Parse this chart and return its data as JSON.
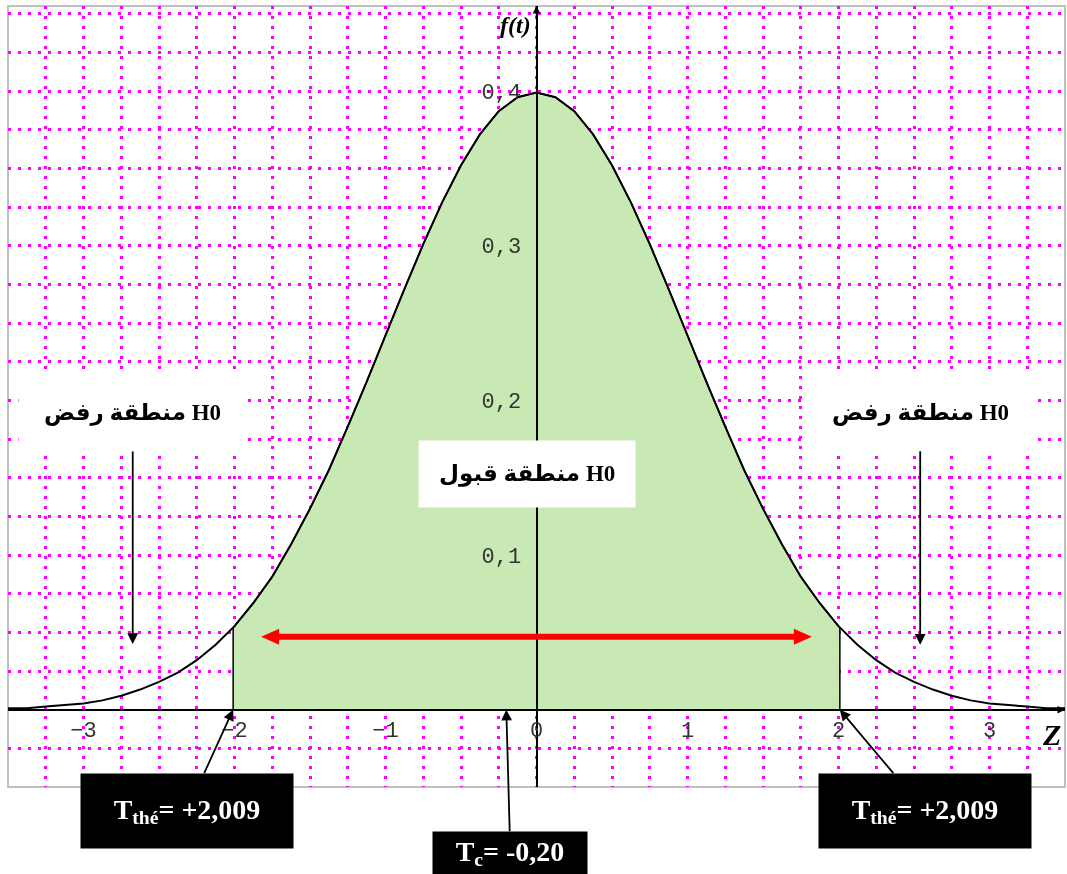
{
  "chart_data": {
    "type": "line",
    "xlabel": "Z",
    "ylabel": "f(t)",
    "xlim": [
      -3.5,
      3.5
    ],
    "ylim": [
      -0.05,
      0.455
    ],
    "xticks": [
      {
        "value": -3.25,
        "label": null
      },
      {
        "value": -3,
        "label": "−3"
      },
      {
        "value": -2.75,
        "label": null
      },
      {
        "value": -2.5,
        "label": null
      },
      {
        "value": -2.25,
        "label": null
      },
      {
        "value": -2,
        "label": "−2"
      },
      {
        "value": -1.75,
        "label": null
      },
      {
        "value": -1.5,
        "label": null
      },
      {
        "value": -1.25,
        "label": null
      },
      {
        "value": -1,
        "label": "−1"
      },
      {
        "value": -0.75,
        "label": null
      },
      {
        "value": -0.5,
        "label": null
      },
      {
        "value": -0.25,
        "label": null
      },
      0,
      {
        "value": 0.25,
        "label": null
      },
      {
        "value": 0.5,
        "label": null
      },
      {
        "value": 0.75,
        "label": null
      },
      1,
      {
        "value": 1.25,
        "label": null
      },
      {
        "value": 1.5,
        "label": null
      },
      {
        "value": 1.75,
        "label": null
      },
      2,
      {
        "value": 2.25,
        "label": null
      },
      {
        "value": 2.5,
        "label": null
      },
      {
        "value": 2.75,
        "label": null
      },
      3,
      {
        "value": 3.25,
        "label": null
      }
    ],
    "yticks": [
      {
        "value": -0.05,
        "label": null
      },
      {
        "value": -0.025,
        "label": null
      },
      {
        "value": 0.025,
        "label": null
      },
      {
        "value": 0.05,
        "label": null
      },
      {
        "value": 0.075,
        "label": null
      },
      {
        "value": 0.1,
        "label": "0,1"
      },
      {
        "value": 0.125,
        "label": null
      },
      {
        "value": 0.15,
        "label": null
      },
      {
        "value": 0.175,
        "label": null
      },
      {
        "value": 0.2,
        "label": "0,2"
      },
      {
        "value": 0.225,
        "label": null
      },
      {
        "value": 0.25,
        "label": null
      },
      {
        "value": 0.275,
        "label": null
      },
      {
        "value": 0.3,
        "label": "0,3"
      },
      {
        "value": 0.325,
        "label": null
      },
      {
        "value": 0.35,
        "label": null
      },
      {
        "value": 0.375,
        "label": null
      },
      {
        "value": 0.4,
        "label": "0,4"
      },
      {
        "value": 0.425,
        "label": null
      },
      {
        "value": 0.45,
        "label": null
      }
    ],
    "grid": true,
    "series": [
      {
        "type": "area",
        "color": "#c8e8b4",
        "x": [
          -2.009,
          -2,
          -1.875,
          -1.75,
          -1.625,
          -1.5,
          -1.375,
          -1.25,
          -1.125,
          -1,
          -0.875,
          -0.75,
          -0.625,
          -0.5,
          -0.375,
          -0.25,
          -0.125,
          0,
          0.125,
          0.25,
          0.375,
          0.5,
          0.625,
          0.75,
          0.875,
          1,
          1.125,
          1.25,
          1.375,
          1.5,
          1.625,
          1.75,
          1.875,
          2,
          2.009
        ],
        "values": [
          0.053,
          0.054,
          0.069,
          0.086,
          0.107,
          0.13,
          0.155,
          0.183,
          0.212,
          0.242,
          0.272,
          0.301,
          0.328,
          0.352,
          0.372,
          0.387,
          0.396,
          0.399,
          0.396,
          0.387,
          0.372,
          0.352,
          0.328,
          0.301,
          0.272,
          0.242,
          0.212,
          0.183,
          0.155,
          0.13,
          0.107,
          0.086,
          0.069,
          0.054,
          0.053
        ]
      },
      {
        "color": "#000000",
        "x": [
          -3.5,
          -3.375,
          -3.25,
          -3.125,
          -3,
          -2.875,
          -2.75,
          -2.625,
          -2.5,
          -2.375,
          -2.25,
          -2.125,
          -2,
          -1.875,
          -1.75,
          -1.625,
          -1.5,
          -1.375,
          -1.25,
          -1.125,
          -1,
          -0.875,
          -0.75,
          -0.625,
          -0.5,
          -0.375,
          -0.25,
          -0.125,
          0,
          0.125,
          0.25,
          0.375,
          0.5,
          0.625,
          0.75,
          0.875,
          1,
          1.125,
          1.25,
          1.375,
          1.5,
          1.625,
          1.75,
          1.875,
          2,
          2.125,
          2.25,
          2.375,
          2.5,
          2.625,
          2.75,
          2.875,
          3,
          3.125,
          3.25,
          3.375,
          3.5
        ],
        "values": [
          0.001,
          0.001,
          0.002,
          0.003,
          0.004,
          0.006,
          0.009,
          0.013,
          0.018,
          0.024,
          0.032,
          0.042,
          0.054,
          0.069,
          0.086,
          0.107,
          0.13,
          0.155,
          0.183,
          0.212,
          0.242,
          0.272,
          0.301,
          0.328,
          0.352,
          0.372,
          0.387,
          0.396,
          0.399,
          0.396,
          0.387,
          0.372,
          0.352,
          0.328,
          0.301,
          0.272,
          0.242,
          0.212,
          0.183,
          0.155,
          0.13,
          0.107,
          0.086,
          0.069,
          0.054,
          0.042,
          0.032,
          0.024,
          0.018,
          0.013,
          0.009,
          0.006,
          0.004,
          0.003,
          0.002,
          0.001,
          0.001
        ]
      }
    ],
    "annotations": [
      "منطقة رفض H0",
      "منطقة قبول H0",
      "منطقة رفض H0",
      {
        "text": "T$_{thé}$= +2,009",
        "x": -2.009,
        "y": 0
      },
      {
        "text": "T$_{c}$= -0,20",
        "x": -0.2,
        "y": 0
      },
      {
        "text": "T$_{thé}$= +2,009",
        "x": 2.009,
        "y": 0
      }
    ]
  }
}
